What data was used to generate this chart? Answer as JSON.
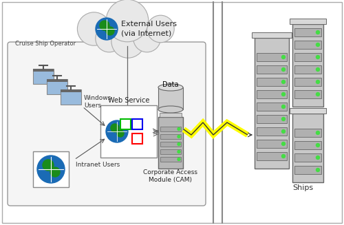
{
  "bg_color": "#ffffff",
  "labels": {
    "external_users": "External Users\n(via Internet)",
    "cruise_ship_operator": "Cruise Ship Operator",
    "windows_users": "Windows\nUsers",
    "intranet_users": "Intranet Users",
    "web_service": "Web Service",
    "cam": "Corporate Access\nModule (CAM)",
    "data": "Data",
    "ships": "Ships"
  },
  "colors": {
    "cloud_fill": "#e8e8e8",
    "cloud_edge": "#aaaaaa",
    "globe_blue": "#1a6bb5",
    "globe_green": "#1a8c1a",
    "red_square": "#ff0000",
    "green_square": "#00bb00",
    "blue_square": "#0000ee",
    "line_color": "#666666",
    "divider_color": "#888888",
    "server_fill": "#b8b8b8",
    "server_edge": "#666666",
    "operator_fill": "#f5f5f5",
    "operator_edge": "#999999",
    "lightning_yellow": "#ffff00",
    "monitor_screen": "#99bbdd",
    "monitor_body": "#888888"
  }
}
